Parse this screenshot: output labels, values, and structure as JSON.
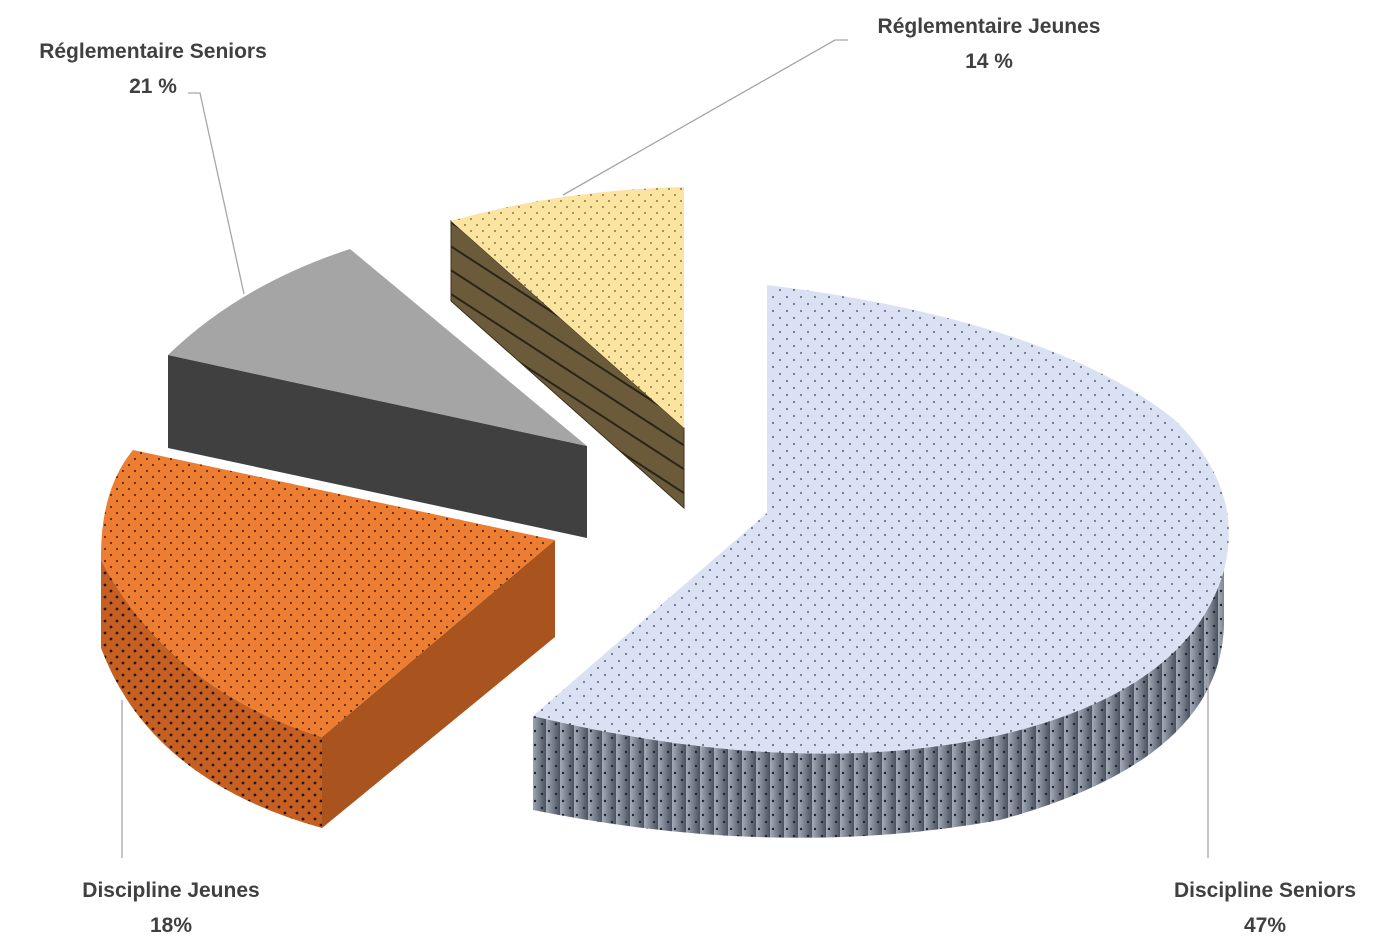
{
  "chart_data": {
    "type": "pie",
    "variant": "3d-exploded",
    "slices": [
      {
        "key": "discipline_seniors",
        "label": "Discipline Seniors",
        "value_text": "47%",
        "value": 47,
        "color": "#d9e1f2",
        "side_color": "#7f8a9a"
      },
      {
        "key": "discipline_jeunes",
        "label": "Discipline Jeunes",
        "value_text": "18%",
        "value": 18,
        "color": "#ed7d31",
        "side_color": "#a9531f"
      },
      {
        "key": "reglementaire_seniors",
        "label": "Réglementaire Seniors",
        "value_text": "21 %",
        "value": 21,
        "color": "#a5a5a5",
        "side_color": "#404040"
      },
      {
        "key": "reglementaire_jeunes",
        "label": "Réglementaire Jeunes",
        "value_text": "14 %",
        "value": 14,
        "color": "#fbe3a0",
        "side_color": "#6b5b3a"
      }
    ],
    "legend": "none",
    "data_labels": "outside-with-leader-lines"
  }
}
